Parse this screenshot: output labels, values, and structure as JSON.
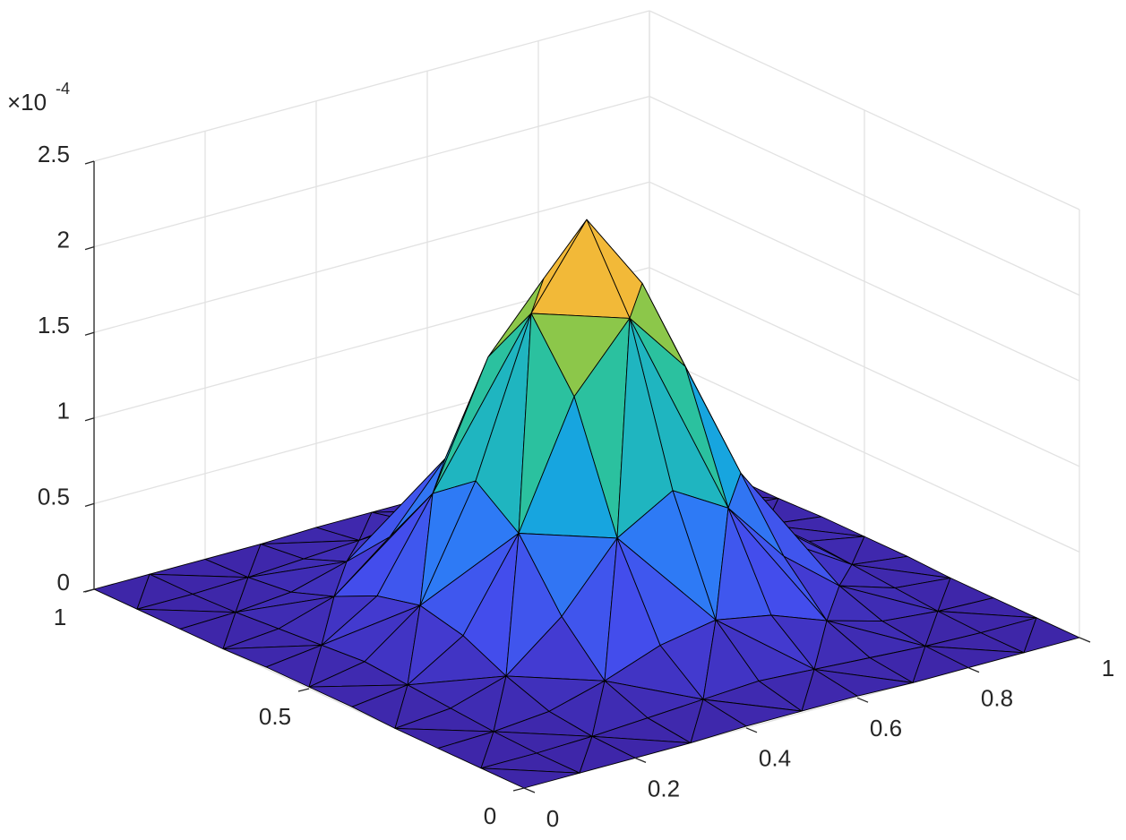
{
  "chart_data": {
    "type": "surface",
    "colormap": "parula",
    "grid": true,
    "z_multiplier": {
      "base": "×10",
      "exponent": "-4"
    },
    "x": [
      0,
      0.1,
      0.2,
      0.3,
      0.4,
      0.5,
      0.6,
      0.7,
      0.8,
      0.9,
      1
    ],
    "y": [
      0,
      0.1,
      0.2,
      0.3,
      0.4,
      0.5,
      0.6,
      0.7,
      0.8,
      0.9,
      1
    ],
    "z": [
      [
        0,
        0,
        0,
        0,
        0.01,
        0.01,
        0.01,
        0,
        0,
        0,
        0
      ],
      [
        0,
        0,
        0.01,
        0.03,
        0.05,
        0.07,
        0.05,
        0.03,
        0.01,
        0,
        0
      ],
      [
        0,
        0.01,
        0.04,
        0.13,
        0.25,
        0.31,
        0.25,
        0.13,
        0.04,
        0.01,
        0
      ],
      [
        0,
        0.03,
        0.13,
        0.39,
        0.76,
        0.95,
        0.76,
        0.39,
        0.13,
        0.03,
        0
      ],
      [
        0.01,
        0.05,
        0.25,
        0.76,
        1.47,
        1.84,
        1.47,
        0.76,
        0.25,
        0.05,
        0.01
      ],
      [
        0.01,
        0.07,
        0.31,
        0.95,
        1.84,
        2.3,
        1.84,
        0.95,
        0.31,
        0.07,
        0.01
      ],
      [
        0.01,
        0.05,
        0.25,
        0.76,
        1.47,
        1.84,
        1.47,
        0.76,
        0.25,
        0.05,
        0.01
      ],
      [
        0,
        0.03,
        0.13,
        0.39,
        0.76,
        0.95,
        0.76,
        0.39,
        0.13,
        0.03,
        0
      ],
      [
        0,
        0.01,
        0.04,
        0.13,
        0.25,
        0.31,
        0.25,
        0.13,
        0.04,
        0.01,
        0
      ],
      [
        0,
        0,
        0.01,
        0.03,
        0.05,
        0.07,
        0.05,
        0.03,
        0.01,
        0,
        0
      ],
      [
        0,
        0,
        0,
        0,
        0.01,
        0.01,
        0.01,
        0,
        0,
        0,
        0
      ]
    ],
    "xlim": [
      0,
      1
    ],
    "ylim": [
      0,
      1
    ],
    "zlim": [
      0,
      2.5
    ],
    "xticks": [
      0,
      0.2,
      0.4,
      0.6,
      0.8,
      1
    ],
    "yticks": [
      0,
      0.5,
      1
    ],
    "zticks": [
      0,
      0.5,
      1,
      1.5,
      2,
      2.5
    ]
  }
}
